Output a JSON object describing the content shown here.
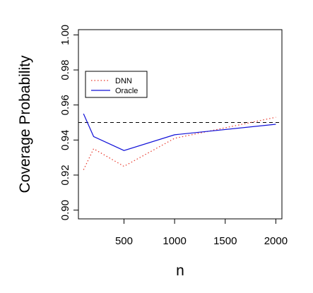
{
  "chart_data": {
    "type": "line",
    "title": "",
    "xlabel": "n",
    "ylabel": "Coverage Probability",
    "xlim": [
      50,
      2060
    ],
    "ylim": [
      0.895,
      1.003
    ],
    "xticks": [
      500,
      1000,
      1500,
      2000
    ],
    "xtick_labels": [
      "500",
      "1000",
      "1500",
      "2000"
    ],
    "yticks": [
      0.9,
      0.92,
      0.94,
      0.96,
      0.98,
      1.0
    ],
    "ytick_labels": [
      "0.90",
      "0.92",
      "0.94",
      "0.96",
      "0.98",
      "1.00"
    ],
    "reference_line": {
      "y": 0.95,
      "style": "dashed",
      "color": "#000000"
    },
    "legend": {
      "placement": "top-left"
    },
    "grid": false,
    "series": [
      {
        "name": "DNN",
        "style": "dotted",
        "color": "#e8382b",
        "x": [
          100,
          200,
          500,
          1000,
          2000
        ],
        "y": [
          0.923,
          0.935,
          0.925,
          0.941,
          0.953
        ]
      },
      {
        "name": "Oracle",
        "style": "solid",
        "color": "#1010d8",
        "x": [
          100,
          200,
          500,
          1000,
          2000
        ],
        "y": [
          0.955,
          0.942,
          0.934,
          0.943,
          0.949
        ]
      }
    ]
  }
}
